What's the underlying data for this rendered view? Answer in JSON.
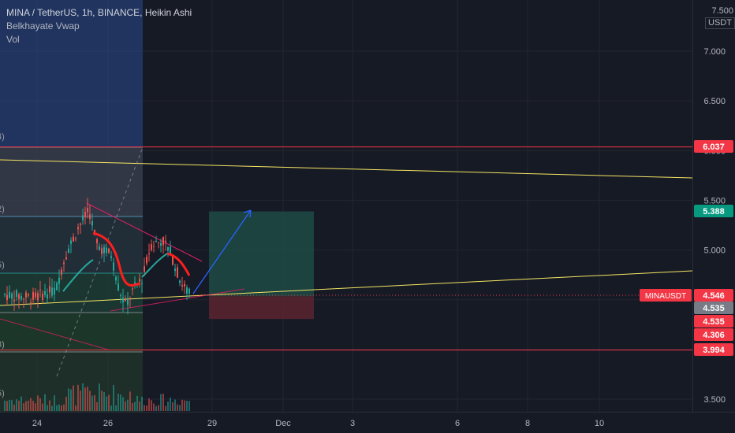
{
  "legend": {
    "title": "MINA / TetherUS, 1h, BINANCE, Heikin Ashi",
    "indicator": "Belkhayate Vwap",
    "volume": "Vol"
  },
  "currency": {
    "top_value": "7.500",
    "unit": "USDT"
  },
  "colors": {
    "background": "#161a25",
    "grid": "#232632",
    "text": "#b2b5be",
    "up": "#26a69a",
    "down": "#ef5350",
    "resistance_line": "#f23645",
    "trend_line": "#f5e663",
    "arrow": "#2962ff",
    "symbol_tag": "#f23645",
    "last_tag": "#787b86",
    "level_tag_green": "#089981"
  },
  "chart_data": {
    "type": "candlestick",
    "symbol": "MINAUSDT",
    "y_ticks": [
      7.0,
      6.5,
      6.0,
      5.5,
      5.0,
      4.5,
      4.0,
      3.5
    ],
    "y_tick_labels": [
      "7.000",
      "6.500",
      "6.000",
      "5.500",
      "5.000",
      "4.500",
      "4.000",
      "3.500"
    ],
    "x_ticks": [
      "24",
      "26",
      "29",
      "Dec",
      "3",
      "6",
      "8",
      "10"
    ],
    "price_tags": [
      {
        "value": 6.037,
        "label": "6.037",
        "style": "red"
      },
      {
        "value": 5.388,
        "label": "5.388",
        "style": "green"
      },
      {
        "value": 4.546,
        "label": "4.546",
        "style": "red",
        "symbol": "MINAUSDT"
      },
      {
        "value": 4.535,
        "label": "4.535",
        "style": "gray"
      },
      {
        "value": 4.535,
        "label": "4.535",
        "style": "red"
      },
      {
        "value": 4.306,
        "label": "4.306",
        "style": "red"
      },
      {
        "value": 3.994,
        "label": "3.994",
        "style": "red"
      }
    ],
    "horizontal_levels": [
      6.037,
      3.994
    ],
    "trade_box": {
      "entry": 4.535,
      "target": 5.388,
      "stop": 4.306
    }
  }
}
